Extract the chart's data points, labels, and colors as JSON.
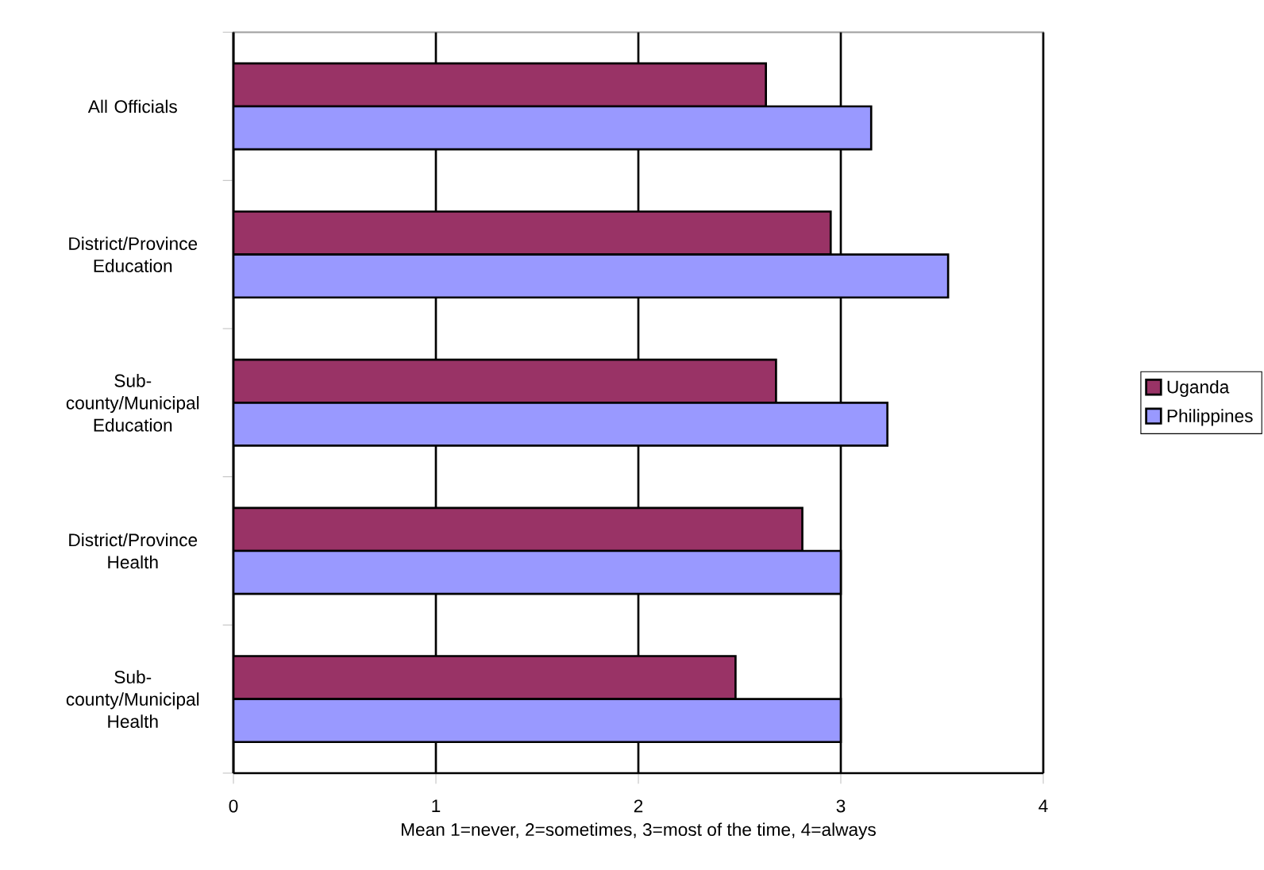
{
  "chart_data": {
    "type": "bar",
    "orientation": "horizontal",
    "xlabel": "Mean 1=never, 2=sometimes, 3=most of the time, 4=always",
    "categories": [
      "All Officials",
      "District/Province Education",
      "Sub-county/Municipal Education",
      "District/Province Health",
      "Sub-county/Municipal Health"
    ],
    "series": [
      {
        "name": "Uganda",
        "color": "#993366",
        "values": [
          2.63,
          2.95,
          2.68,
          2.81,
          2.48
        ]
      },
      {
        "name": "Philippines",
        "color": "#9999ff",
        "values": [
          3.15,
          3.53,
          3.23,
          3.0,
          3.0
        ]
      }
    ],
    "xlim": [
      0,
      4
    ],
    "xticks": [
      0,
      1,
      2,
      3,
      4
    ],
    "grid": "x",
    "legend": "right"
  }
}
